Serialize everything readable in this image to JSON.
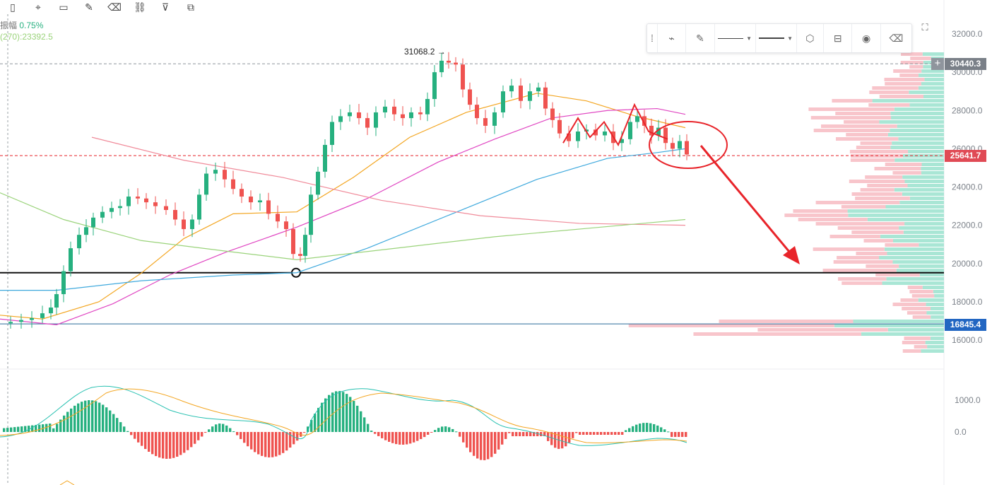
{
  "toolbar": {
    "icons": [
      "candlestick-icon",
      "pin-icon",
      "bookmark-icon",
      "edit-icon",
      "trash-icon",
      "link-icon",
      "filter-icon",
      "copy-icon"
    ]
  },
  "legend": {
    "amplitude_label": "振幅",
    "amplitude_value": "0.75%",
    "ma_label": "(270):",
    "ma_value": "23392.5"
  },
  "floating_toolbar": {
    "items": [
      "drag-handle-icon",
      "draw-tool-icon",
      "pen-icon",
      "line-style-select",
      "line-width-select",
      "settings-icon",
      "lock-icon",
      "eye-icon",
      "delete-icon"
    ]
  },
  "markers": {
    "high_label": "31068.2"
  },
  "price_tags": {
    "top": "30440.3",
    "current": "25641.7",
    "support": "16845.4"
  },
  "colors": {
    "up": "#26b07f",
    "down": "#ef5350",
    "ma_fast": "#26c0b0",
    "ma_orange": "#f3a622",
    "ma_magenta": "#e046c2",
    "ma_blue": "#3fa9dd",
    "ma_pink": "#f08b9a",
    "ma_green": "#9ad37a",
    "annotation": "#e8242a",
    "volume_profile_up": "#a9e6d5",
    "volume_profile_down": "#f8c5cb",
    "tag_gray": "#7a8088",
    "tag_red": "#e04a55",
    "tag_blue": "#2266c2"
  },
  "chart_data": {
    "type": "candlestick",
    "y_axis": {
      "ticks": [
        "32000.0",
        "30000.0",
        "28000.0",
        "26000.0",
        "24000.0",
        "22000.0",
        "20000.0",
        "18000.0",
        "16000.0"
      ],
      "range": [
        15500,
        32700
      ]
    },
    "sub_axis": {
      "ticks": [
        "1000.0",
        "0.0"
      ]
    },
    "horizontal_levels": [
      {
        "name": "high-line",
        "value": 30440.3,
        "style": "dashed"
      },
      {
        "name": "current-line",
        "value": 25641.7,
        "style": "dashed"
      },
      {
        "name": "support-line",
        "value": 19520,
        "style": "solid"
      },
      {
        "name": "low-line",
        "value": 16845.4,
        "style": "solid"
      }
    ],
    "max_marker": {
      "label": "31068.2",
      "value": 31068.2
    },
    "annotations": [
      "red-circle-around-latest-candles",
      "red-arrow-pointing-down-to-support"
    ]
  }
}
